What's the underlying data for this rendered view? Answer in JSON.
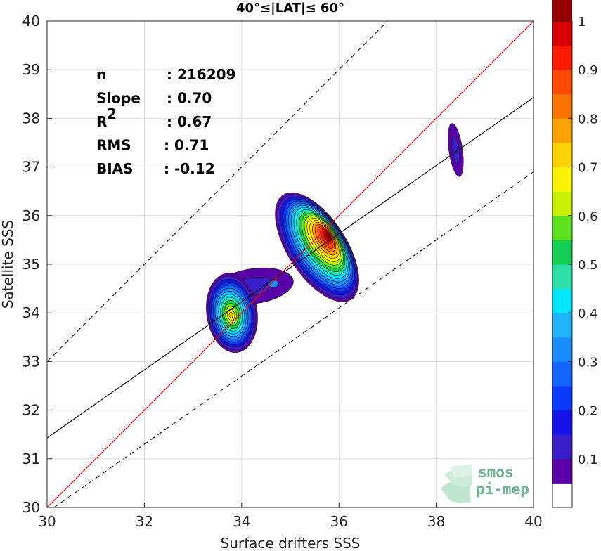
{
  "chart_data": {
    "type": "heatmap",
    "title": "40°≤|LAT|≤ 60°",
    "xlabel": "Surface drifters SSS",
    "ylabel": "Satellite SSS",
    "xlim": [
      30,
      40
    ],
    "ylim": [
      30,
      40
    ],
    "xticks": [
      "30",
      "32",
      "34",
      "36",
      "38",
      "40"
    ],
    "yticks": [
      "30",
      "31",
      "32",
      "33",
      "34",
      "35",
      "36",
      "37",
      "38",
      "39",
      "40"
    ],
    "grid": true,
    "stats": [
      {
        "label": "n",
        "value": ": 216209"
      },
      {
        "label": "Slope",
        "value": ": 0.70"
      },
      {
        "label": "R",
        "sup": "2",
        "value": ": 0.67"
      },
      {
        "label": "RMS",
        "value": ": 0.71"
      },
      {
        "label": "BIAS",
        "value": ": -0.12"
      }
    ],
    "identity_line": {
      "x": [
        30,
        40
      ],
      "y": [
        30,
        40
      ],
      "color": "#ff0000"
    },
    "regression_line": {
      "x": [
        30,
        40
      ],
      "y": [
        31.43,
        38.43
      ],
      "color": "#000000"
    },
    "bound_lines": [
      {
        "x": [
          30,
          40
        ],
        "y": [
          33.0,
          43.0
        ],
        "style": "dashed"
      },
      {
        "x": [
          30,
          40
        ],
        "y": [
          29.9,
          36.9
        ],
        "style": "dashed"
      }
    ],
    "density_peaks": [
      {
        "x": 35.78,
        "y": 35.6,
        "value": 1.0
      },
      {
        "x": 33.78,
        "y": 33.95,
        "value": 0.7
      },
      {
        "x": 38.4,
        "y": 37.35,
        "value": 0.1
      },
      {
        "x": 34.65,
        "y": 34.6,
        "value": 0.3
      }
    ],
    "colorbar": {
      "ticks": [
        "0.1",
        "0.2",
        "0.3",
        "0.4",
        "0.5",
        "0.6",
        "0.7",
        "0.8",
        "0.9",
        "1"
      ],
      "levels": [
        0,
        0.05,
        0.1,
        0.15,
        0.2,
        0.25,
        0.3,
        0.35,
        0.4,
        0.45,
        0.5,
        0.55,
        0.6,
        0.65,
        0.7,
        0.75,
        0.8,
        0.85,
        0.9,
        0.95,
        1.0
      ],
      "colors": [
        "#ffffff",
        "#5a00a8",
        "#3a1ec8",
        "#1414e8",
        "#0a3aff",
        "#1464ff",
        "#1a8cff",
        "#1eb4ff",
        "#00e6ff",
        "#2de0a8",
        "#15cf55",
        "#5ee21e",
        "#c8f000",
        "#fff200",
        "#ffd200",
        "#ffa200",
        "#ff7200",
        "#ff4a00",
        "#ff1a00",
        "#d80000",
        "#960000"
      ]
    }
  },
  "logo": {
    "line1": "smos",
    "line2": "pi-mep",
    "color": "#6fb58e"
  }
}
